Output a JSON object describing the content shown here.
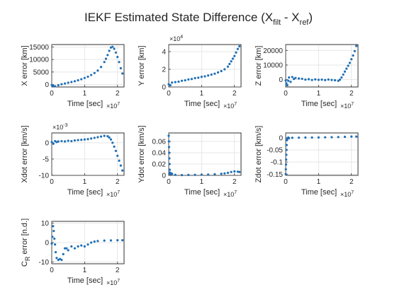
{
  "figure": {
    "title_main": "IEKF Estimated State Difference (X",
    "title_sub1": "filt",
    "title_mid": " - X",
    "title_sub2": "ref",
    "title_end": ")",
    "marker_color": "#1f6fb6",
    "grid": true
  },
  "chart_data": [
    {
      "type": "scatter",
      "xlabel": "Time [sec]",
      "ylabel": "X error [km]",
      "x_exponent": "×10^7",
      "y_exponent": "",
      "xlim": [
        0,
        2.2
      ],
      "ylim": [
        -1000,
        16000
      ],
      "xticks": [
        0,
        1,
        2
      ],
      "xtick_labels": [
        "0",
        "1",
        "2"
      ],
      "yticks": [
        0,
        5000,
        10000,
        15000
      ],
      "ytick_labels": [
        "0",
        "5000",
        "10000",
        "15000"
      ],
      "x": [
        0.0,
        0.05,
        0.1,
        0.2,
        0.3,
        0.4,
        0.5,
        0.6,
        0.7,
        0.8,
        0.9,
        1.0,
        1.1,
        1.2,
        1.3,
        1.4,
        1.5,
        1.6,
        1.65,
        1.7,
        1.75,
        1.8,
        1.85,
        1.9,
        1.95,
        2.0,
        2.05,
        2.1,
        2.15
      ],
      "y": [
        -200,
        -600,
        -700,
        -300,
        100,
        400,
        700,
        1000,
        1300,
        1700,
        2100,
        2600,
        3100,
        3800,
        4600,
        5600,
        7000,
        9000,
        10300,
        11800,
        13500,
        14800,
        15100,
        14300,
        12800,
        11000,
        9000,
        6500,
        4400
      ]
    },
    {
      "type": "scatter",
      "xlabel": "Time [sec]",
      "ylabel": "Y error [km]",
      "x_exponent": "×10^7",
      "y_exponent": "×10^4",
      "xlim": [
        0,
        2.2
      ],
      "ylim": [
        0,
        4.8
      ],
      "xticks": [
        0,
        1,
        2
      ],
      "xtick_labels": [
        "0",
        "1",
        "2"
      ],
      "yticks": [
        0,
        2,
        4
      ],
      "ytick_labels": [
        "0",
        "2",
        "4"
      ],
      "x": [
        0.0,
        0.05,
        0.1,
        0.2,
        0.3,
        0.4,
        0.5,
        0.6,
        0.7,
        0.8,
        0.9,
        1.0,
        1.1,
        1.2,
        1.3,
        1.4,
        1.5,
        1.6,
        1.7,
        1.8,
        1.85,
        1.9,
        1.95,
        2.0,
        2.05,
        2.1,
        2.15
      ],
      "y": [
        0.3,
        0.2,
        0.5,
        0.55,
        0.6,
        0.7,
        0.75,
        0.85,
        0.9,
        1.0,
        1.05,
        1.15,
        1.2,
        1.3,
        1.4,
        1.5,
        1.65,
        1.8,
        2.0,
        2.3,
        2.6,
        2.9,
        3.2,
        3.5,
        3.9,
        4.3,
        4.6
      ]
    },
    {
      "type": "scatter",
      "xlabel": "Time [sec]",
      "ylabel": "Z error [km]",
      "x_exponent": "×10^7",
      "y_exponent": "",
      "xlim": [
        0,
        2.2
      ],
      "ylim": [
        -5000,
        24000
      ],
      "xticks": [
        0,
        1,
        2
      ],
      "xtick_labels": [
        "0",
        "1",
        "2"
      ],
      "yticks": [
        0,
        10000,
        20000
      ],
      "ytick_labels": [
        "0",
        "10000",
        "20000"
      ],
      "x": [
        0.0,
        0.02,
        0.05,
        0.08,
        0.1,
        0.15,
        0.2,
        0.25,
        0.3,
        0.4,
        0.5,
        0.6,
        0.7,
        0.8,
        0.9,
        1.0,
        1.1,
        1.2,
        1.3,
        1.4,
        1.5,
        1.6,
        1.65,
        1.7,
        1.75,
        1.8,
        1.85,
        1.9,
        1.95,
        2.0,
        2.05,
        2.1,
        2.15
      ],
      "y": [
        -500,
        -2500,
        -3800,
        -800,
        1500,
        -1500,
        1800,
        500,
        1200,
        800,
        600,
        0,
        300,
        -200,
        200,
        -100,
        0,
        -300,
        100,
        -200,
        -400,
        -800,
        0,
        1500,
        3500,
        5500,
        7500,
        9500,
        11500,
        14000,
        16500,
        19500,
        23000
      ]
    },
    {
      "type": "scatter",
      "xlabel": "Time [sec]",
      "ylabel": "Xdot error [km/s]",
      "x_exponent": "×10^7",
      "y_exponent": "×10^-3",
      "xlim": [
        0,
        2.2
      ],
      "ylim": [
        -10,
        3
      ],
      "xticks": [
        0,
        1,
        2
      ],
      "xtick_labels": [
        "0",
        "1",
        "2"
      ],
      "yticks": [
        0,
        -5,
        -10
      ],
      "ytick_labels": [
        "0",
        "-5",
        "-10"
      ],
      "x": [
        0.0,
        0.05,
        0.1,
        0.15,
        0.2,
        0.3,
        0.4,
        0.5,
        0.6,
        0.7,
        0.8,
        0.9,
        1.0,
        1.1,
        1.2,
        1.3,
        1.4,
        1.5,
        1.6,
        1.7,
        1.75,
        1.8,
        1.85,
        1.9,
        1.95,
        2.0,
        2.05,
        2.1,
        2.15
      ],
      "y": [
        0.2,
        -0.3,
        0.5,
        0.2,
        0.4,
        0.5,
        0.4,
        0.6,
        0.5,
        0.7,
        0.8,
        0.9,
        1.0,
        1.1,
        1.3,
        1.5,
        1.7,
        1.9,
        2.1,
        2.0,
        1.6,
        1.0,
        0.0,
        -1.2,
        -2.5,
        -4.0,
        -5.5,
        -7.0,
        -8.5
      ]
    },
    {
      "type": "scatter",
      "xlabel": "Time [sec]",
      "ylabel": "Ydot error [km/s]",
      "x_exponent": "×10^7",
      "y_exponent": "",
      "xlim": [
        0,
        2.2
      ],
      "ylim": [
        0,
        0.075
      ],
      "xticks": [
        0,
        1,
        2
      ],
      "xtick_labels": [
        "0",
        "1",
        "2"
      ],
      "yticks": [
        0,
        0.02,
        0.04,
        0.06
      ],
      "ytick_labels": [
        "0",
        "0.02",
        "0.04",
        "0.06"
      ],
      "x": [
        0.0,
        0.005,
        0.01,
        0.015,
        0.02,
        0.025,
        0.03,
        0.035,
        0.04,
        0.05,
        0.08,
        0.1,
        0.2,
        0.4,
        0.6,
        0.8,
        1.0,
        1.2,
        1.4,
        1.6,
        1.7,
        1.8,
        1.9,
        2.0,
        2.1,
        2.15
      ],
      "y": [
        0.07,
        0.06,
        0.05,
        0.04,
        0.03,
        0.02,
        0.01,
        0.005,
        0.003,
        0.004,
        0.002,
        0.003,
        0.001,
        0.0005,
        0.0008,
        0.001,
        0.0012,
        0.0015,
        0.002,
        0.0028,
        0.0035,
        0.0045,
        0.006,
        0.007,
        0.0065,
        0.006
      ]
    },
    {
      "type": "scatter",
      "xlabel": "Time [sec]",
      "ylabel": "Zdot error [km/s]",
      "x_exponent": "×10^7",
      "y_exponent": "",
      "xlim": [
        0,
        2.2
      ],
      "ylim": [
        -0.155,
        0.02
      ],
      "xticks": [
        0,
        1,
        2
      ],
      "xtick_labels": [
        "0",
        "1",
        "2"
      ],
      "yticks": [
        0,
        -0.05,
        -0.1,
        -0.15
      ],
      "ytick_labels": [
        "0",
        "-0.05",
        "-0.1",
        "-0.15"
      ],
      "x": [
        0.0,
        0.005,
        0.01,
        0.015,
        0.02,
        0.025,
        0.03,
        0.04,
        0.05,
        0.08,
        0.1,
        0.2,
        0.4,
        0.6,
        0.8,
        1.0,
        1.2,
        1.4,
        1.6,
        1.8,
        2.0,
        2.15
      ],
      "y": [
        -0.15,
        -0.13,
        -0.11,
        -0.09,
        -0.07,
        -0.05,
        -0.03,
        -0.01,
        -0.003,
        0.001,
        -0.002,
        0.0,
        0.0005,
        0.001,
        0.0012,
        0.0015,
        0.002,
        0.0025,
        0.003,
        0.004,
        0.005,
        0.005
      ]
    },
    {
      "type": "scatter",
      "xlabel": "Time [sec]",
      "ylabel": "C_R error [n.d.]",
      "ylabel_main": "C",
      "ylabel_sub": "R",
      "ylabel_tail": " error [n.d.]",
      "x_exponent": "×10^7",
      "y_exponent": "",
      "xlim": [
        0,
        2.2
      ],
      "ylim": [
        -11,
        11
      ],
      "xticks": [
        0,
        1,
        2
      ],
      "xtick_labels": [
        "0",
        "1",
        "2"
      ],
      "yticks": [
        10,
        0,
        -10
      ],
      "ytick_labels": [
        "10",
        "0",
        "-10"
      ],
      "x": [
        0.0,
        0.02,
        0.04,
        0.06,
        0.08,
        0.1,
        0.12,
        0.15,
        0.2,
        0.25,
        0.3,
        0.35,
        0.4,
        0.45,
        0.5,
        0.6,
        0.7,
        0.8,
        0.9,
        1.0,
        1.1,
        1.2,
        1.3,
        1.4,
        1.6,
        1.8,
        2.0,
        2.15
      ],
      "y": [
        -0.5,
        3.0,
        8.5,
        6.0,
        2.0,
        -1.0,
        -5.0,
        -8.0,
        -9.0,
        -8.5,
        -9.0,
        -6.0,
        -3.0,
        -3.0,
        -4.0,
        -2.0,
        -3.0,
        -2.0,
        -1.5,
        -2.0,
        -1.0,
        0.0,
        0.5,
        0.8,
        1.0,
        1.1,
        1.2,
        1.2
      ]
    }
  ]
}
